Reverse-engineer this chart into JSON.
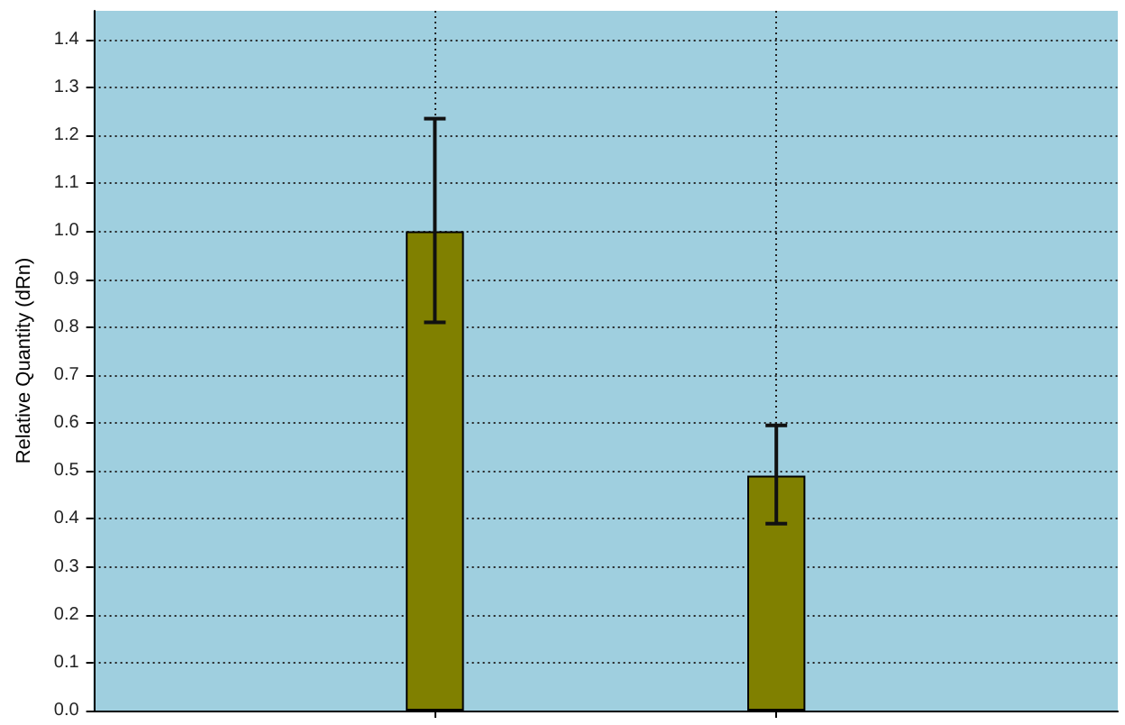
{
  "chart_data": {
    "type": "bar",
    "ylabel": "Relative Quantity (dRn)",
    "categories": [
      null,
      null
    ],
    "series": [
      {
        "color": "#808000",
        "values": [
          1.0,
          0.49
        ],
        "errors": [
          [
            0.81,
            1.235
          ],
          [
            0.39,
            0.595
          ]
        ]
      }
    ],
    "ylim": [
      0,
      1.46
    ],
    "yticks": [
      {
        "value": 0,
        "label": "0.0"
      },
      {
        "value": 0.1,
        "label": "0.1"
      },
      {
        "value": 0.2,
        "label": "0.2"
      },
      {
        "value": 0.3,
        "label": "0.3"
      },
      {
        "value": 0.4,
        "label": "0.4"
      },
      {
        "value": 0.5,
        "label": "0.5"
      },
      {
        "value": 0.6,
        "label": "0.6"
      },
      {
        "value": 0.7,
        "label": "0.7"
      },
      {
        "value": 0.8,
        "label": "0.8"
      },
      {
        "value": 0.9,
        "label": "0.9"
      },
      {
        "value": 1.0,
        "label": "1.0"
      },
      {
        "value": 1.1,
        "label": "1.1"
      },
      {
        "value": 1.2,
        "label": "1.2"
      },
      {
        "value": 1.3,
        "label": "1.3"
      },
      {
        "value": 1.4,
        "label": "1.4"
      }
    ],
    "grid": true
  }
}
